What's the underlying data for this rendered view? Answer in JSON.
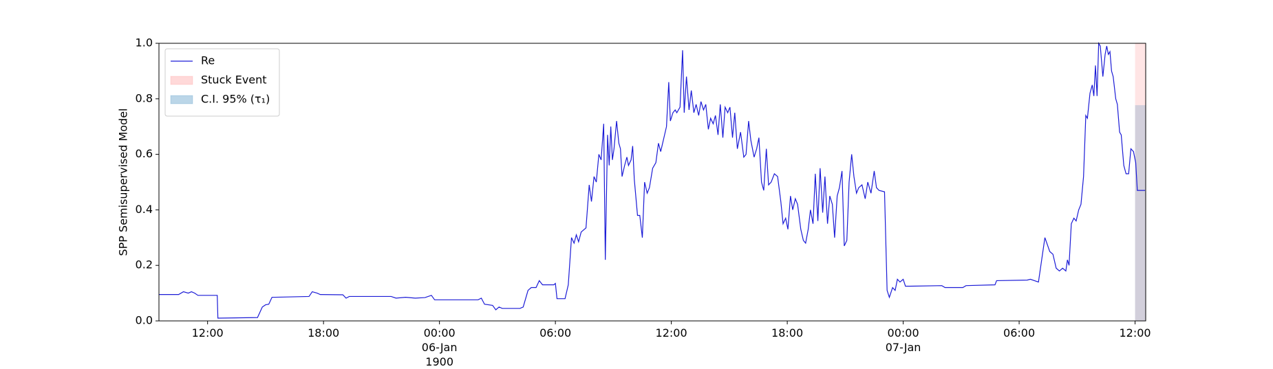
{
  "chart_data": {
    "type": "line",
    "y_label": "SPP Semisupervised Model",
    "xlim": [
      "1900-01-05 09:29",
      "1900-01-07 12:33"
    ],
    "ylim": [
      0,
      1
    ],
    "yticks": [
      {
        "value": 0,
        "label": "0.0"
      },
      {
        "value": 0.2,
        "label": "0.2"
      },
      {
        "value": 0.4,
        "label": "0.4"
      },
      {
        "value": 0.6,
        "label": "0.6"
      },
      {
        "value": 0.8,
        "label": "0.8"
      },
      {
        "value": 1,
        "label": "1.0"
      }
    ],
    "xticks": [
      {
        "value": "1900-01-05 12:00",
        "label": "12:00"
      },
      {
        "value": "1900-01-05 18:00",
        "label": "18:00"
      },
      {
        "value": "1900-01-06 00:00",
        "label": "00:00\n06-Jan\n1900"
      },
      {
        "value": "1900-01-06 06:00",
        "label": "06:00"
      },
      {
        "value": "1900-01-06 12:00",
        "label": "12:00"
      },
      {
        "value": "1900-01-06 18:00",
        "label": "18:00"
      },
      {
        "value": "1900-01-07 00:00",
        "label": "00:00\n07-Jan"
      },
      {
        "value": "1900-01-07 06:00",
        "label": "06:00"
      },
      {
        "value": "1900-01-07 12:00",
        "label": "12:00"
      }
    ],
    "legend": "upper left",
    "x": [
      "1900-01-05 09:29",
      "1900-01-05 10:30",
      "1900-01-05 10:45",
      "1900-01-05 11:00",
      "1900-01-05 11:10",
      "1900-01-05 11:20",
      "1900-01-05 11:30",
      "1900-01-05 12:30",
      "1900-01-05 12:32",
      "1900-01-05 14:35",
      "1900-01-05 14:50",
      "1900-01-05 15:00",
      "1900-01-05 15:10",
      "1900-01-05 15:20",
      "1900-01-05 17:15",
      "1900-01-05 17:25",
      "1900-01-05 17:40",
      "1900-01-05 17:50",
      "1900-01-05 19:00",
      "1900-01-05 19:10",
      "1900-01-05 19:20",
      "1900-01-05 21:30",
      "1900-01-05 21:45",
      "1900-01-05 22:15",
      "1900-01-05 22:45",
      "1900-01-05 23:15",
      "1900-01-05 23:35",
      "1900-01-05 23:45",
      "1900-01-06 02:00",
      "1900-01-06 02:10",
      "1900-01-06 02:20",
      "1900-01-06 02:45",
      "1900-01-06 02:55",
      "1900-01-06 03:05",
      "1900-01-06 03:15",
      "1900-01-06 04:10",
      "1900-01-06 04:20",
      "1900-01-06 04:35",
      "1900-01-06 04:45",
      "1900-01-06 05:00",
      "1900-01-06 05:10",
      "1900-01-06 05:20",
      "1900-01-06 05:55",
      "1900-01-06 06:00",
      "1900-01-06 06:05",
      "1900-01-06 06:30",
      "1900-01-06 06:40",
      "1900-01-06 06:50",
      "1900-01-06 06:58",
      "1900-01-06 07:05",
      "1900-01-06 07:12",
      "1900-01-06 07:20",
      "1900-01-06 07:35",
      "1900-01-06 07:45",
      "1900-01-06 07:52",
      "1900-01-06 08:00",
      "1900-01-06 08:07",
      "1900-01-06 08:15",
      "1900-01-06 08:22",
      "1900-01-06 08:30",
      "1900-01-06 08:35",
      "1900-01-06 08:42",
      "1900-01-06 08:47",
      "1900-01-06 08:52",
      "1900-01-06 08:57",
      "1900-01-06 09:02",
      "1900-01-06 09:10",
      "1900-01-06 09:17",
      "1900-01-06 09:22",
      "1900-01-06 09:27",
      "1900-01-06 09:35",
      "1900-01-06 09:42",
      "1900-01-06 09:47",
      "1900-01-06 09:55",
      "1900-01-06 10:00",
      "1900-01-06 10:05",
      "1900-01-06 10:15",
      "1900-01-06 10:22",
      "1900-01-06 10:30",
      "1900-01-06 10:37",
      "1900-01-06 10:45",
      "1900-01-06 10:52",
      "1900-01-06 11:02",
      "1900-01-06 11:12",
      "1900-01-06 11:20",
      "1900-01-06 11:27",
      "1900-01-06 11:37",
      "1900-01-06 11:45",
      "1900-01-06 11:52",
      "1900-01-06 11:57",
      "1900-01-06 12:05",
      "1900-01-06 12:12",
      "1900-01-06 12:17",
      "1900-01-06 12:27",
      "1900-01-06 12:35",
      "1900-01-06 12:40",
      "1900-01-06 12:47",
      "1900-01-06 12:55",
      "1900-01-06 13:02",
      "1900-01-06 13:10",
      "1900-01-06 13:17",
      "1900-01-06 13:25",
      "1900-01-06 13:32",
      "1900-01-06 13:40",
      "1900-01-06 13:47",
      "1900-01-06 13:55",
      "1900-01-06 14:02",
      "1900-01-06 14:10",
      "1900-01-06 14:17",
      "1900-01-06 14:25",
      "1900-01-06 14:32",
      "1900-01-06 14:40",
      "1900-01-06 14:47",
      "1900-01-06 14:55",
      "1900-01-06 15:02",
      "1900-01-06 15:10",
      "1900-01-06 15:17",
      "1900-01-06 15:25",
      "1900-01-06 15:35",
      "1900-01-06 15:45",
      "1900-01-06 15:52",
      "1900-01-06 16:00",
      "1900-01-06 16:07",
      "1900-01-06 16:17",
      "1900-01-06 16:25",
      "1900-01-06 16:32",
      "1900-01-06 16:40",
      "1900-01-06 16:47",
      "1900-01-06 16:55",
      "1900-01-06 17:02",
      "1900-01-06 17:10",
      "1900-01-06 17:20",
      "1900-01-06 17:30",
      "1900-01-06 17:40",
      "1900-01-06 17:47",
      "1900-01-06 17:55",
      "1900-01-06 18:02",
      "1900-01-06 18:10",
      "1900-01-06 18:17",
      "1900-01-06 18:25",
      "1900-01-06 18:32",
      "1900-01-06 18:42",
      "1900-01-06 18:50",
      "1900-01-06 18:57",
      "1900-01-06 19:05",
      "1900-01-06 19:12",
      "1900-01-06 19:20",
      "1900-01-06 19:27",
      "1900-01-06 19:35",
      "1900-01-06 19:42",
      "1900-01-06 19:50",
      "1900-01-06 19:57",
      "1900-01-06 20:05",
      "1900-01-06 20:12",
      "1900-01-06 20:20",
      "1900-01-06 20:27",
      "1900-01-06 20:35",
      "1900-01-06 20:42",
      "1900-01-06 20:50",
      "1900-01-06 20:57",
      "1900-01-06 21:05",
      "1900-01-06 21:12",
      "1900-01-06 21:20",
      "1900-01-06 21:27",
      "1900-01-06 21:35",
      "1900-01-06 21:42",
      "1900-01-06 21:52",
      "1900-01-06 22:02",
      "1900-01-06 22:10",
      "1900-01-06 22:20",
      "1900-01-06 22:30",
      "1900-01-06 22:37",
      "1900-01-06 22:45",
      "1900-01-06 23:02",
      "1900-01-06 23:10",
      "1900-01-06 23:17",
      "1900-01-06 23:27",
      "1900-01-06 23:35",
      "1900-01-06 23:42",
      "1900-01-06 23:50",
      "1900-01-07 00:00",
      "1900-01-07 00:07",
      "1900-01-07 00:20",
      "1900-01-07 02:00",
      "1900-01-07 02:10",
      "1900-01-07 03:05",
      "1900-01-07 03:15",
      "1900-01-07 04:45",
      "1900-01-07 04:50",
      "1900-01-07 06:25",
      "1900-01-07 06:35",
      "1900-01-07 07:00",
      "1900-01-07 07:10",
      "1900-01-07 07:20",
      "1900-01-07 07:35",
      "1900-01-07 07:45",
      "1900-01-07 07:55",
      "1900-01-07 08:05",
      "1900-01-07 08:15",
      "1900-01-07 08:25",
      "1900-01-07 08:30",
      "1900-01-07 08:35",
      "1900-01-07 08:42",
      "1900-01-07 08:50",
      "1900-01-07 08:57",
      "1900-01-07 09:05",
      "1900-01-07 09:12",
      "1900-01-07 09:20",
      "1900-01-07 09:27",
      "1900-01-07 09:32",
      "1900-01-07 09:40",
      "1900-01-07 09:47",
      "1900-01-07 09:52",
      "1900-01-07 09:57",
      "1900-01-07 10:02",
      "1900-01-07 10:07",
      "1900-01-07 10:12",
      "1900-01-07 10:20",
      "1900-01-07 10:27",
      "1900-01-07 10:32",
      "1900-01-07 10:37",
      "1900-01-07 10:42",
      "1900-01-07 10:47",
      "1900-01-07 10:52",
      "1900-01-07 11:00",
      "1900-01-07 11:05",
      "1900-01-07 11:12",
      "1900-01-07 11:17",
      "1900-01-07 11:25",
      "1900-01-07 11:32",
      "1900-01-07 11:40",
      "1900-01-07 11:47",
      "1900-01-07 11:55",
      "1900-01-07 12:02",
      "1900-01-07 12:07",
      "1900-01-07 12:31"
    ],
    "series": [
      {
        "name": "Re",
        "color": "#1a1ad6",
        "values": [
          0.095,
          0.095,
          0.105,
          0.1,
          0.105,
          0.1,
          0.092,
          0.092,
          0.01,
          0.012,
          0.05,
          0.058,
          0.06,
          0.085,
          0.088,
          0.105,
          0.1,
          0.095,
          0.094,
          0.082,
          0.088,
          0.088,
          0.082,
          0.085,
          0.082,
          0.084,
          0.092,
          0.076,
          0.076,
          0.082,
          0.06,
          0.056,
          0.04,
          0.05,
          0.045,
          0.045,
          0.05,
          0.11,
          0.12,
          0.12,
          0.145,
          0.13,
          0.13,
          0.135,
          0.08,
          0.08,
          0.13,
          0.3,
          0.28,
          0.31,
          0.285,
          0.32,
          0.335,
          0.49,
          0.43,
          0.52,
          0.5,
          0.6,
          0.58,
          0.71,
          0.22,
          0.67,
          0.56,
          0.7,
          0.58,
          0.62,
          0.72,
          0.64,
          0.62,
          0.52,
          0.56,
          0.59,
          0.56,
          0.58,
          0.63,
          0.51,
          0.38,
          0.38,
          0.3,
          0.5,
          0.46,
          0.48,
          0.55,
          0.57,
          0.64,
          0.61,
          0.66,
          0.7,
          0.86,
          0.72,
          0.75,
          0.76,
          0.75,
          0.77,
          0.975,
          0.75,
          0.88,
          0.76,
          0.83,
          0.75,
          0.78,
          0.74,
          0.79,
          0.76,
          0.78,
          0.69,
          0.73,
          0.71,
          0.74,
          0.67,
          0.78,
          0.66,
          0.77,
          0.75,
          0.77,
          0.66,
          0.75,
          0.62,
          0.68,
          0.59,
          0.6,
          0.72,
          0.65,
          0.59,
          0.62,
          0.66,
          0.5,
          0.47,
          0.62,
          0.49,
          0.5,
          0.53,
          0.52,
          0.43,
          0.35,
          0.37,
          0.33,
          0.45,
          0.4,
          0.44,
          0.42,
          0.33,
          0.29,
          0.28,
          0.33,
          0.4,
          0.35,
          0.53,
          0.36,
          0.55,
          0.39,
          0.52,
          0.35,
          0.45,
          0.42,
          0.3,
          0.45,
          0.48,
          0.54,
          0.27,
          0.29,
          0.5,
          0.6,
          0.52,
          0.46,
          0.48,
          0.49,
          0.44,
          0.5,
          0.46,
          0.54,
          0.48,
          0.47,
          0.465,
          0.11,
          0.085,
          0.12,
          0.11,
          0.15,
          0.14,
          0.15,
          0.125,
          0.125,
          0.127,
          0.12,
          0.12,
          0.127,
          0.13,
          0.145,
          0.147,
          0.15,
          0.14,
          0.22,
          0.3,
          0.25,
          0.24,
          0.19,
          0.18,
          0.19,
          0.18,
          0.22,
          0.2,
          0.35,
          0.37,
          0.36,
          0.4,
          0.42,
          0.52,
          0.74,
          0.73,
          0.82,
          0.85,
          0.81,
          0.92,
          0.81,
          1.0,
          0.99,
          0.88,
          0.96,
          0.99,
          0.96,
          0.97,
          0.9,
          0.88,
          0.8,
          0.78,
          0.68,
          0.67,
          0.56,
          0.53,
          0.53,
          0.62,
          0.61,
          0.57,
          0.47,
          0.47
        ]
      }
    ],
    "spans": [
      {
        "name": "Stuck Event",
        "color": "#ff0000",
        "alpha": 0.1,
        "x": [
          "1900-01-07 12:00",
          "1900-01-07 12:33"
        ]
      },
      {
        "name": "C.I. 95% (τ₁)",
        "color": "#1f77b4",
        "alpha": 0.2,
        "x": [
          "1900-01-07 12:00",
          "1900-01-07 12:33"
        ],
        "y": [
          0,
          0.777
        ]
      }
    ]
  }
}
